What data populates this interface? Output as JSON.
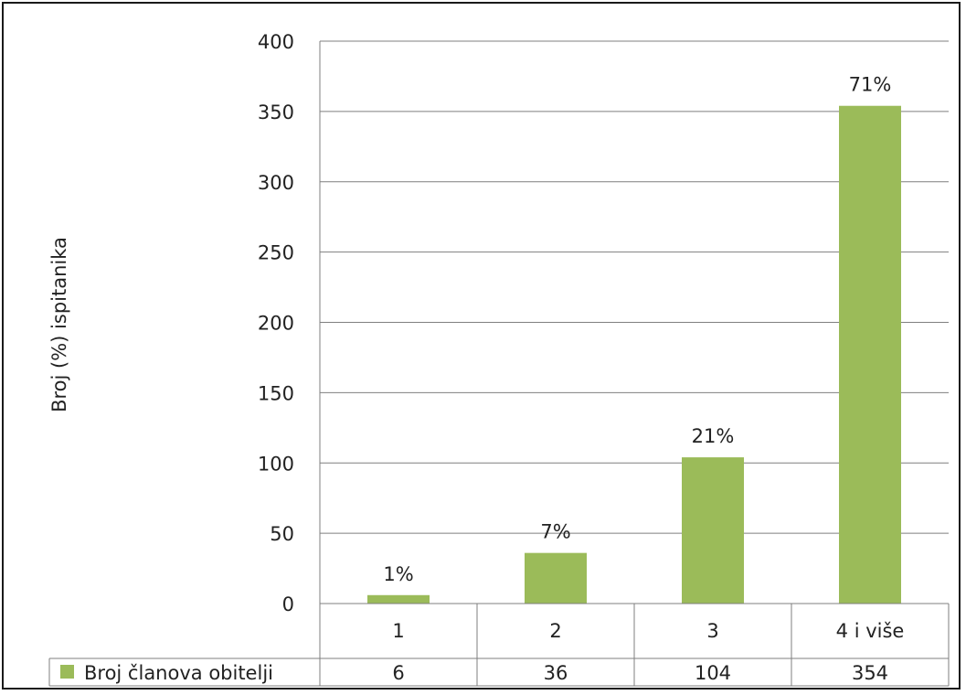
{
  "chart_data": {
    "type": "bar",
    "title": "",
    "xlabel": "",
    "ylabel": "Broj (%) ispitanika",
    "categories": [
      "1",
      "2",
      "3",
      "4 i više"
    ],
    "series": [
      {
        "name": "Broj članova obitelji",
        "values": [
          6,
          36,
          104,
          354
        ],
        "data_labels": [
          "1%",
          "7%",
          "21%",
          "71%"
        ]
      }
    ],
    "ylim": [
      0,
      400
    ],
    "yticks": [
      0,
      50,
      100,
      150,
      200,
      250,
      300,
      350,
      400
    ],
    "ytick_labels": [
      "0",
      "50",
      "100",
      "150",
      "200",
      "250",
      "300",
      "350",
      "400"
    ],
    "grid": true,
    "legend": "data-table-left",
    "data_table": true,
    "bar_color": "#9bbb59",
    "grid_color": "#7f7f7f"
  }
}
